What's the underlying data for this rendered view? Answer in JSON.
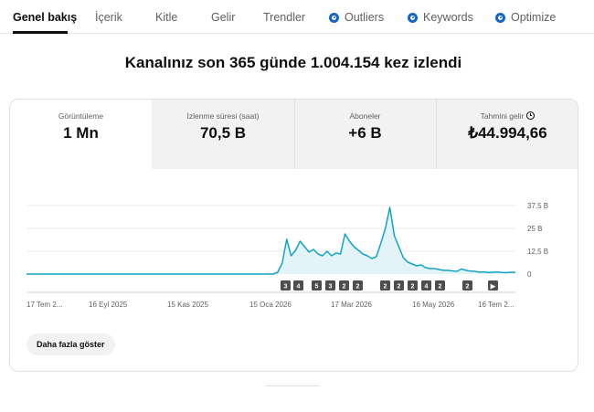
{
  "tabs": [
    {
      "label": "Genel bakış",
      "active": true,
      "icon": null
    },
    {
      "label": "İçerik",
      "active": false,
      "icon": null
    },
    {
      "label": "Kitle",
      "active": false,
      "icon": null
    },
    {
      "label": "Gelir",
      "active": false,
      "icon": null
    },
    {
      "label": "Trendler",
      "active": false,
      "icon": null
    },
    {
      "label": "Outliers",
      "active": false,
      "icon": "extension-icon"
    },
    {
      "label": "Keywords",
      "active": false,
      "icon": "extension-icon"
    },
    {
      "label": "Optimize",
      "active": false,
      "icon": "extension-icon"
    }
  ],
  "headline": "Kanalınız son 365 günde 1.004.154 kez izlendi",
  "metrics": [
    {
      "label": "Görüntüleme",
      "value": "1 Mn",
      "selected": true
    },
    {
      "label": "İzlenme süresi (saat)",
      "value": "70,5 B",
      "selected": false
    },
    {
      "label": "Aboneler",
      "value": "+6 B",
      "selected": false
    },
    {
      "label": "Tahmini gelir",
      "value": "₺44.994,66",
      "selected": false,
      "icon": "clock-icon"
    }
  ],
  "chart_data": {
    "type": "area",
    "title": "",
    "xlabel": "",
    "ylabel": "",
    "y_ticks": [
      "0",
      "12,5 B",
      "25 B",
      "37,5 B"
    ],
    "ylim": [
      0,
      37500
    ],
    "x_tick_labels": [
      "17 Tem 2...",
      "16 Eyl 2025",
      "15 Kas 2025",
      "15 Oca 2026",
      "17 Mar 2026",
      "16 May 2026",
      "16 Tem 2..."
    ],
    "grid": true,
    "line_color": "#12a3c9",
    "fill_color": "#e3f4f9",
    "series": [
      {
        "values": [
          0,
          0,
          0,
          0,
          0,
          0,
          0,
          0,
          0,
          0,
          0,
          0,
          0,
          0,
          0,
          0,
          0,
          0,
          0,
          0,
          0,
          0,
          0,
          0,
          0,
          0,
          0,
          0,
          0,
          0,
          0,
          0,
          0,
          0,
          0,
          0,
          0,
          0,
          0,
          0,
          0,
          0,
          0,
          0,
          0,
          0,
          0,
          0,
          0,
          0,
          0,
          0,
          0,
          0,
          0,
          0,
          1000,
          6000,
          19000,
          10000,
          13000,
          18000,
          15000,
          12000,
          13500,
          11000,
          10000,
          12500,
          10000,
          11500,
          11000,
          22000,
          18000,
          15000,
          13000,
          11000,
          10000,
          8500,
          9500,
          17000,
          25000,
          36500,
          21000,
          15000,
          9000,
          6500,
          5500,
          4500,
          5000,
          3500,
          3000,
          3000,
          2500,
          2000,
          2000,
          1700,
          1500,
          2800,
          2000,
          1600,
          1500,
          1000,
          1200,
          800,
          1000,
          1100,
          900,
          800,
          1000,
          900
        ]
      }
    ],
    "annotations": [
      "3",
      "4",
      "5",
      "3",
      "2",
      "2",
      "2",
      "2",
      "2",
      "4",
      "2",
      "2",
      "▶"
    ]
  },
  "more_button": "Daha fazla göster"
}
